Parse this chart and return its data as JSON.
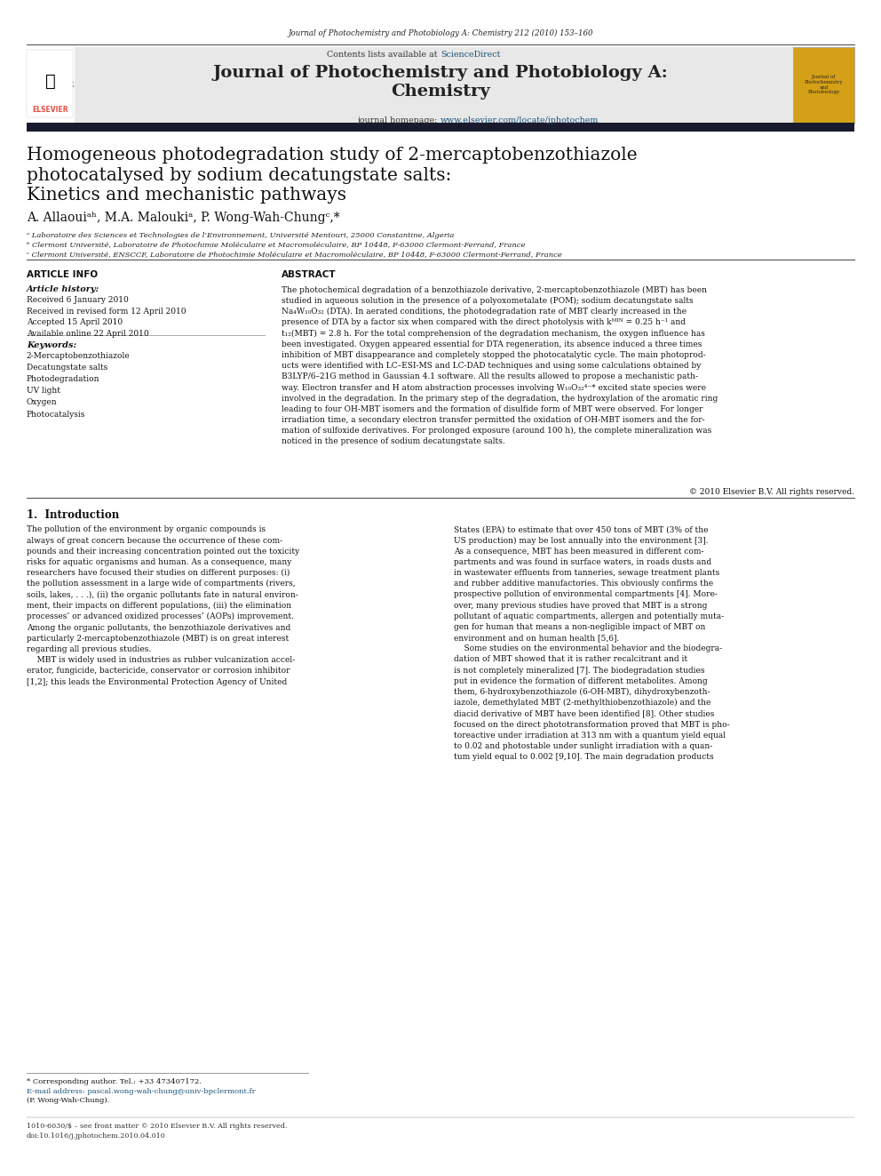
{
  "page_width": 9.92,
  "page_height": 13.23,
  "background": "#ffffff",
  "top_journal_ref": "Journal of Photochemistry and Photobiology A: Chemistry 212 (2010) 153–160",
  "header_bg": "#e8e8e8",
  "header_contents_text": "Contents lists available at ",
  "header_sciencedirect": "ScienceDirect",
  "header_journal_title": "Journal of Photochemistry and Photobiology A:\nChemistry",
  "header_homepage_text": "journal homepage: ",
  "header_homepage_url": "www.elsevier.com/locate/jphotochem",
  "article_title_line1": "Homogeneous photodegradation study of 2-mercaptobenzothiazole",
  "article_title_line2": "photocatalysed by sodium decatungstate salts:",
  "article_title_line3": "Kinetics and mechanistic pathways",
  "authors": "A. Allaouiᵃʰ, M.A. Maloukiᵃ, P. Wong-Wah-Chungᶜ,*",
  "affil_a": "ᵃ Laboratoire des Sciences et Technologies de l’Environnement, Université Mentouri, 25000 Constantine, Algeria",
  "affil_b": "ᵇ Clermont Université, Laboratoire de Photochimie Moléculaire et Macromoléculaire, BP 10448, F-63000 Clermont-Ferrand, France",
  "affil_c": "ᶜ Clermont Université, ENSCCF, Laboratoire de Photochimie Moléculaire et Macromoléculaire, BP 10448, F-63000 Clermont-Ferrand, France",
  "article_info_title": "ARTICLE INFO",
  "article_history_title": "Article history:",
  "article_history": "Received 6 January 2010\nReceived in revised form 12 April 2010\nAccepted 15 April 2010\nAvailable online 22 April 2010",
  "keywords_title": "Keywords:",
  "keywords": "2-Mercaptobenzothiazole\nDecatungstate salts\nPhotodegradation\nUV light\nOxygen\nPhotocatalysis",
  "abstract_title": "ABSTRACT",
  "abstract_text": "The photochemical degradation of a benzothiazole derivative, 2-mercaptobenzothiazole (MBT) has been\nstudied in aqueous solution in the presence of a polyoxometalate (POM); sodium decatungstate salts\nNa₄W₁₀O₃₂ (DTA). In aerated conditions, the photodegradation rate of MBT clearly increased in the\npresence of DTA by a factor six when compared with the direct photolysis with kᴹᴵᴺ = 0.25 h⁻¹ and\nt₁₂(MBT) = 2.8 h. For the total comprehension of the degradation mechanism, the oxygen influence has\nbeen investigated. Oxygen appeared essential for DTA regeneration, its absence induced a three times\ninhibition of MBT disappearance and completely stopped the photocatalytic cycle. The main photoprod-\nucts were identified with LC–ESI-MS and LC-DAD techniques and using some calculations obtained by\nB3LYP/6–21G method in Gaussian 4.1 software. All the results allowed to propose a mechanistic path-\nway. Electron transfer and H atom abstraction processes involving W₁₀O₃₂⁴⁻* excited state species were\ninvolved in the degradation. In the primary step of the degradation, the hydroxylation of the aromatic ring\nleading to four OH-MBT isomers and the formation of disulfide form of MBT were observed. For longer\nirradiation time, a secondary electron transfer permitted the oxidation of OH-MBT isomers and the for-\nmation of sulfoxide derivatives. For prolonged exposure (around 100 h), the complete mineralization was\nnoticed in the presence of sodium decatungstate salts.",
  "copyright": "© 2010 Elsevier B.V. All rights reserved.",
  "intro_title": "1.  Introduction",
  "intro_col1": "The pollution of the environment by organic compounds is\nalways of great concern because the occurrence of these com-\npounds and their increasing concentration pointed out the toxicity\nrisks for aquatic organisms and human. As a consequence, many\nresearchers have focused their studies on different purposes: (i)\nthe pollution assessment in a large wide of compartments (rivers,\nsoils, lakes, . . .), (ii) the organic pollutants fate in natural environ-\nment, their impacts on different populations, (iii) the elimination\nprocesses’ or advanced oxidized processes’ (AOPs) improvement.\nAmong the organic pollutants, the benzothiazole derivatives and\nparticularly 2-mercaptobenzothiazole (MBT) is on great interest\nregarding all previous studies.\n    MBT is widely used in industries as rubber vulcanization accel-\nerator, fungicide, bactericide, conservator or corrosion inhibitor\n[1,2]; this leads the Environmental Protection Agency of United",
  "intro_col2": "States (EPA) to estimate that over 450 tons of MBT (3% of the\nUS production) may be lost annually into the environment [3].\nAs a consequence, MBT has been measured in different com-\npartments and was found in surface waters, in roads dusts and\nin wastewater effluents from tanneries, sewage treatment plants\nand rubber additive manufactories. This obviously confirms the\nprospective pollution of environmental compartments [4]. More-\nover, many previous studies have proved that MBT is a strong\npollutant of aquatic compartments, allergen and potentially muta-\ngen for human that means a non-negligible impact of MBT on\nenvironment and on human health [5,6].\n    Some studies on the environmental behavior and the biodegra-\ndation of MBT showed that it is rather recalcitrant and it\nis not completely mineralized [7]. The biodegradation studies\nput in evidence the formation of different metabolites. Among\nthem, 6-hydroxybenzothiazole (6-OH-MBT), dihydroxybenzoth-\niazole, demethylated MBT (2-methylthiobenzothiazole) and the\ndiacid derivative of MBT have been identified [8]. Other studies\nfocused on the direct phototransformation proved that MBT is pho-\ntoreactive under irradiation at 313 nm with a quantum yield equal\nto 0.02 and photostable under sunlight irradiation with a quan-\ntum yield equal to 0.002 [9,10]. The main degradation products",
  "footnote_star": "* Corresponding author. Tel.: +33 473407172.",
  "footnote_email": "E-mail address: pascal.wong-wah-chung@univ-bpclermont.fr",
  "footnote_paren": "(P. Wong-Wah-Chung).",
  "bottom_issn": "1010-6030/$ – see front matter © 2010 Elsevier B.V. All rights reserved.",
  "bottom_doi": "doi:10.1016/j.jphotochem.2010.04.010"
}
